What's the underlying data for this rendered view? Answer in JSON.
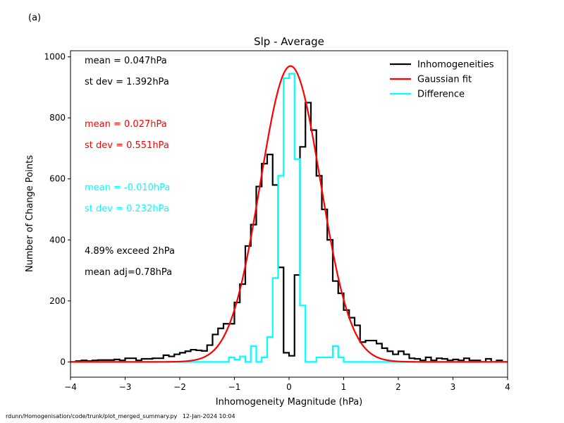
{
  "panel_label": "(a)",
  "footer": {
    "path": "rdunn/Homogenisation/code/trunk/plot_merged_summary.py",
    "date": "12-Jan-2024 10:04"
  },
  "chart_data": {
    "type": "line",
    "title": "Slp - Average",
    "xlabel": "Inhomogeneity Magnitude (hPa)",
    "ylabel": "Number of Change Points",
    "xlim": [
      -4,
      4
    ],
    "ylim": [
      -50,
      1020
    ],
    "xticks": [
      -4,
      -3,
      -2,
      -1,
      0,
      1,
      2,
      3,
      4
    ],
    "yticks": [
      0,
      200,
      400,
      600,
      800,
      1000
    ],
    "grid": false,
    "legend_position": "top-right",
    "annotations": [
      {
        "text": "mean =  0.047hPa",
        "color": "#000000"
      },
      {
        "text": "st dev =  1.392hPa",
        "color": "#000000"
      },
      {
        "text": "mean =  0.027hPa",
        "color": "#ff0000"
      },
      {
        "text": "st dev =  0.551hPa",
        "color": "#ff0000"
      },
      {
        "text": "mean = -0.010hPa",
        "color": "#00ffff"
      },
      {
        "text": "st dev =  0.232hPa",
        "color": "#00ffff"
      },
      {
        "text": "4.89% exceed 2hPa",
        "color": "#000000"
      },
      {
        "text": "mean adj=0.78hPa",
        "color": "#000000"
      }
    ],
    "series": [
      {
        "name": "Inhomogeneities",
        "color": "#000000",
        "style": "step",
        "x": [
          -4.0,
          -3.9,
          -3.8,
          -3.7,
          -3.6,
          -3.5,
          -3.4,
          -3.3,
          -3.2,
          -3.1,
          -3.0,
          -2.9,
          -2.8,
          -2.7,
          -2.6,
          -2.5,
          -2.4,
          -2.3,
          -2.2,
          -2.1,
          -2.0,
          -1.9,
          -1.8,
          -1.7,
          -1.6,
          -1.5,
          -1.4,
          -1.3,
          -1.2,
          -1.1,
          -1.0,
          -0.9,
          -0.8,
          -0.7,
          -0.6,
          -0.5,
          -0.4,
          -0.3,
          -0.2,
          -0.1,
          0.0,
          0.1,
          0.2,
          0.3,
          0.4,
          0.5,
          0.6,
          0.7,
          0.8,
          0.9,
          1.0,
          1.1,
          1.2,
          1.3,
          1.4,
          1.5,
          1.6,
          1.7,
          1.8,
          1.9,
          2.0,
          2.1,
          2.2,
          2.3,
          2.4,
          2.5,
          2.6,
          2.7,
          2.8,
          2.9,
          3.0,
          3.1,
          3.2,
          3.3,
          3.4,
          3.5,
          3.6,
          3.7,
          3.8,
          3.9,
          4.0
        ],
        "y": [
          0,
          3,
          5,
          3,
          5,
          6,
          6,
          6,
          8,
          5,
          12,
          12,
          5,
          10,
          10,
          12,
          12,
          22,
          18,
          25,
          30,
          35,
          40,
          38,
          36,
          55,
          90,
          110,
          125,
          125,
          195,
          255,
          380,
          450,
          575,
          650,
          680,
          580,
          310,
          30,
          20,
          285,
          705,
          850,
          760,
          610,
          500,
          400,
          265,
          225,
          170,
          145,
          120,
          65,
          70,
          70,
          60,
          45,
          35,
          25,
          35,
          25,
          12,
          10,
          5,
          15,
          5,
          12,
          10,
          5,
          8,
          5,
          12,
          5,
          5,
          0,
          10,
          0,
          5,
          0,
          0
        ]
      },
      {
        "name": "Gaussian fit",
        "color": "#ff0000",
        "style": "line",
        "gaussian": {
          "amplitude": 970,
          "mean": 0.027,
          "sigma": 0.551
        },
        "x_range": [
          -4,
          4
        ]
      },
      {
        "name": "Difference",
        "color": "#00ffff",
        "style": "step",
        "x": [
          -4.0,
          -3.9,
          -3.8,
          -3.7,
          -3.6,
          -3.5,
          -3.4,
          -3.3,
          -3.2,
          -3.1,
          -3.0,
          -2.9,
          -2.8,
          -2.7,
          -2.6,
          -2.5,
          -2.4,
          -2.3,
          -2.2,
          -2.1,
          -2.0,
          -1.9,
          -1.8,
          -1.7,
          -1.6,
          -1.5,
          -1.4,
          -1.3,
          -1.2,
          -1.1,
          -1.0,
          -0.9,
          -0.8,
          -0.7,
          -0.6,
          -0.5,
          -0.4,
          -0.3,
          -0.2,
          -0.1,
          0.0,
          0.1,
          0.2,
          0.3,
          0.4,
          0.5,
          0.6,
          0.7,
          0.8,
          0.9,
          1.0,
          1.1,
          1.2,
          1.3,
          1.4,
          1.5,
          1.6,
          1.7,
          1.8,
          1.9,
          2.0,
          2.1,
          2.2,
          2.3,
          2.4,
          2.5,
          2.6,
          2.7,
          2.8,
          2.9,
          3.0,
          3.1,
          3.2,
          3.3,
          3.4,
          3.5,
          3.6,
          3.7,
          3.8,
          3.9,
          4.0
        ],
        "y": [
          0,
          0,
          0,
          0,
          0,
          0,
          0,
          0,
          0,
          0,
          0,
          0,
          0,
          0,
          0,
          0,
          0,
          0,
          0,
          0,
          0,
          0,
          0,
          0,
          0,
          0,
          0,
          0,
          0,
          15,
          8,
          18,
          0,
          52,
          0,
          15,
          82,
          275,
          610,
          930,
          945,
          665,
          185,
          0,
          0,
          15,
          15,
          15,
          52,
          15,
          0,
          0,
          0,
          0,
          0,
          0,
          0,
          0,
          0,
          0,
          0,
          0,
          0,
          0,
          0,
          0,
          0,
          0,
          0,
          0,
          0,
          0,
          0,
          0,
          0,
          0,
          0,
          0,
          0,
          0,
          0
        ]
      }
    ]
  }
}
